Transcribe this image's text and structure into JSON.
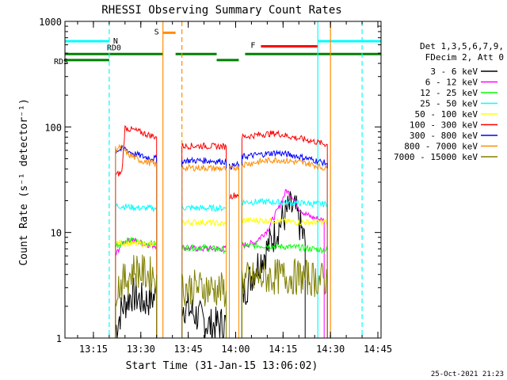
{
  "chart_data": {
    "type": "line",
    "title": "RHESSI Observing Summary Count Rates",
    "xlabel": "Start Time (31-Jan-15 13:06:02)",
    "ylabel": "Count Rate (s⁻¹ detector⁻¹)",
    "y_scale": "log",
    "ylim": [
      1,
      1000
    ],
    "xlim": [
      "13:06",
      "14:46"
    ],
    "x_ticks": [
      "13:15",
      "13:30",
      "13:45",
      "14:00",
      "14:15",
      "14:30",
      "14:45"
    ],
    "y_ticks": [
      "1",
      "10",
      "100",
      "1000"
    ],
    "footer_date": "25-Oct-2021 21:23",
    "legend_header": [
      "Det 1,3,5,6,7,9,",
      "FDecim 2, Att 0"
    ],
    "legend_position": "right",
    "series": [
      {
        "name": "3 - 6 keV",
        "color": "#000000",
        "segments": [
          [
            [
              "13:22",
              1.2
            ],
            [
              "13:24",
              1.9
            ],
            [
              "13:27",
              2.6
            ],
            [
              "13:31",
              2.2
            ],
            [
              "13:35",
              2.5
            ]
          ],
          [
            [
              "13:43",
              2.1
            ],
            [
              "13:48",
              1.6
            ],
            [
              "13:52",
              1.3
            ],
            [
              "13:57",
              1.4
            ]
          ],
          [
            [
              "14:02",
              2.5
            ],
            [
              "14:06",
              4.5
            ],
            [
              "14:10",
              7.0
            ],
            [
              "14:14",
              12.0
            ],
            [
              "14:17",
              17.0
            ],
            [
              "14:19",
              16.0
            ],
            [
              "14:21",
              10.0
            ],
            [
              "14:22",
              8.0
            ]
          ]
        ]
      },
      {
        "name": "6 - 12 keV",
        "color": "#ff00ff",
        "segments": [
          [
            [
              "13:22",
              6.0
            ],
            [
              "13:24",
              8.0
            ],
            [
              "13:27",
              8.5
            ],
            [
              "13:31",
              7.8
            ],
            [
              "13:35",
              7.5
            ]
          ],
          [
            [
              "13:43",
              7.2
            ],
            [
              "13:49",
              7.0
            ],
            [
              "13:57",
              7.0
            ]
          ],
          [
            [
              "14:02",
              7.5
            ],
            [
              "14:06",
              8.0
            ],
            [
              "14:10",
              10.5
            ],
            [
              "14:14",
              18.0
            ],
            [
              "14:16",
              25.0
            ],
            [
              "14:18",
              22.0
            ],
            [
              "14:20",
              17.0
            ],
            [
              "14:22",
              15.0
            ],
            [
              "14:24",
              14.0
            ],
            [
              "14:28",
              13.0
            ]
          ]
        ]
      },
      {
        "name": "12 - 25 keV",
        "color": "#00ff00",
        "segments": [
          [
            [
              "13:22",
              7.5
            ],
            [
              "13:26",
              8.5
            ],
            [
              "13:30",
              8.0
            ],
            [
              "13:35",
              7.8
            ]
          ],
          [
            [
              "13:43",
              7.2
            ],
            [
              "13:50",
              7.2
            ],
            [
              "13:57",
              6.8
            ]
          ],
          [
            [
              "14:02",
              7.5
            ],
            [
              "14:10",
              7.5
            ],
            [
              "14:20",
              7.2
            ],
            [
              "14:29",
              6.8
            ]
          ]
        ]
      },
      {
        "name": "25 - 50 keV",
        "color": "#00ffff",
        "segments": [
          [
            [
              "13:22",
              18.0
            ],
            [
              "13:26",
              17.5
            ],
            [
              "13:30",
              17.0
            ],
            [
              "13:35",
              17.0
            ]
          ],
          [
            [
              "13:43",
              17.2
            ],
            [
              "13:50",
              17.0
            ],
            [
              "13:57",
              17.0
            ]
          ],
          [
            [
              "14:02",
              19.5
            ],
            [
              "14:10",
              19.5
            ],
            [
              "14:20",
              19.0
            ],
            [
              "14:29",
              18.5
            ]
          ]
        ]
      },
      {
        "name": "50 - 100 keV",
        "color": "#ffff00",
        "segments": [
          [
            [
              "13:22",
              8.0
            ],
            [
              "13:30",
              7.8
            ],
            [
              "13:35",
              7.6
            ]
          ],
          [
            [
              "13:43",
              12.5
            ],
            [
              "13:50",
              12.5
            ],
            [
              "13:57",
              12.0
            ]
          ],
          [
            [
              "14:02",
              13.0
            ],
            [
              "14:10",
              13.0
            ],
            [
              "14:20",
              12.5
            ],
            [
              "14:29",
              12.5
            ]
          ]
        ]
      },
      {
        "name": "100 - 300 keV",
        "color": "#ff0000",
        "segments": [
          [
            [
              "13:22",
              35.0
            ],
            [
              "13:24",
              37.0
            ],
            [
              "13:25",
              98.0
            ],
            [
              "13:28",
              93.0
            ],
            [
              "13:32",
              85.0
            ],
            [
              "13:35",
              80.0
            ]
          ],
          [
            [
              "13:43",
              66.0
            ],
            [
              "13:50",
              66.0
            ],
            [
              "13:57",
              65.0
            ]
          ],
          [
            [
              "13:58",
              22.0
            ],
            [
              "14:01",
              23.0
            ]
          ],
          [
            [
              "14:02",
              80.0
            ],
            [
              "14:08",
              85.0
            ],
            [
              "14:13",
              87.0
            ],
            [
              "14:18",
              80.0
            ],
            [
              "14:23",
              75.0
            ],
            [
              "14:29",
              68.0
            ]
          ]
        ]
      },
      {
        "name": "300 - 800 keV",
        "color": "#0000ff",
        "segments": [
          [
            [
              "13:22",
              60.0
            ],
            [
              "13:25",
              62.0
            ],
            [
              "13:27",
              57.0
            ],
            [
              "13:31",
              52.0
            ],
            [
              "13:35",
              50.0
            ]
          ],
          [
            [
              "13:43",
              48.0
            ],
            [
              "13:50",
              48.0
            ],
            [
              "13:57",
              47.0
            ]
          ],
          [
            [
              "13:58",
              42.0
            ],
            [
              "14:01",
              44.0
            ]
          ],
          [
            [
              "14:02",
              52.0
            ],
            [
              "14:08",
              55.0
            ],
            [
              "14:13",
              57.0
            ],
            [
              "14:18",
              54.0
            ],
            [
              "14:23",
              50.0
            ],
            [
              "14:29",
              45.0
            ]
          ]
        ]
      },
      {
        "name": "800 - 7000 keV",
        "color": "#ff8c00",
        "segments": [
          [
            [
              "13:22",
              62.0
            ],
            [
              "13:24",
              64.0
            ],
            [
              "13:26",
              55.0
            ],
            [
              "13:30",
              48.0
            ],
            [
              "13:35",
              44.0
            ]
          ],
          [
            [
              "13:43",
              41.0
            ],
            [
              "13:50",
              41.0
            ],
            [
              "13:57",
              40.0
            ]
          ],
          [
            [
              "13:58",
              40.0
            ],
            [
              "14:01",
              42.0
            ]
          ],
          [
            [
              "14:02",
              44.0
            ],
            [
              "14:08",
              47.0
            ],
            [
              "14:13",
              49.0
            ],
            [
              "14:18",
              47.0
            ],
            [
              "14:23",
              45.0
            ],
            [
              "14:29",
              40.0
            ]
          ]
        ]
      },
      {
        "name": "7000 - 15000 keV",
        "color": "#808000",
        "segments": [
          [
            [
              "13:22",
              3.0
            ],
            [
              "13:25",
              3.5
            ],
            [
              "13:28",
              4.5
            ],
            [
              "13:32",
              4.0
            ],
            [
              "13:35",
              4.0
            ]
          ],
          [
            [
              "13:43",
              3.0
            ],
            [
              "13:50",
              3.0
            ],
            [
              "13:57",
              2.8
            ]
          ],
          [
            [
              "14:02",
              3.5
            ],
            [
              "14:10",
              3.8
            ],
            [
              "14:20",
              3.8
            ],
            [
              "14:29",
              3.5
            ]
          ]
        ]
      }
    ],
    "state_bars": [
      {
        "label": "N",
        "color": "#00ffff",
        "y_value": 650,
        "segments": [
          [
            "13:06",
            "13:20"
          ],
          [
            "14:26",
            "14:46"
          ]
        ]
      },
      {
        "label": "S",
        "color": "#ff8c00",
        "y_value": 780,
        "segments": [
          [
            "13:37",
            "13:41"
          ]
        ]
      },
      {
        "label": "F",
        "color": "#ff0000",
        "y_value": 580,
        "segments": [
          [
            "14:08",
            "14:26"
          ]
        ]
      },
      {
        "label": "RD0",
        "color": "#008000",
        "y_value": 490,
        "segments": [
          [
            "13:06",
            "13:37"
          ],
          [
            "13:41",
            "13:54"
          ],
          [
            "14:03",
            "14:46"
          ]
        ]
      },
      {
        "label": "RDS",
        "color": "#008000",
        "y_value": 430,
        "segments": [
          [
            "13:06",
            "13:20"
          ],
          [
            "13:54",
            "14:01"
          ]
        ]
      }
    ],
    "vertical_markers": [
      {
        "time": "13:20",
        "color": "#00ffff",
        "style": "dashed"
      },
      {
        "time": "13:37",
        "color": "#ff8c00",
        "style": "solid"
      },
      {
        "time": "13:43",
        "color": "#ff8c00",
        "style": "dashed"
      },
      {
        "time": "14:26",
        "color": "#00ffff",
        "style": "solid"
      },
      {
        "time": "14:30",
        "color": "#ff8c00",
        "style": "solid"
      },
      {
        "time": "14:40",
        "color": "#00ffff",
        "style": "dashed"
      }
    ]
  }
}
